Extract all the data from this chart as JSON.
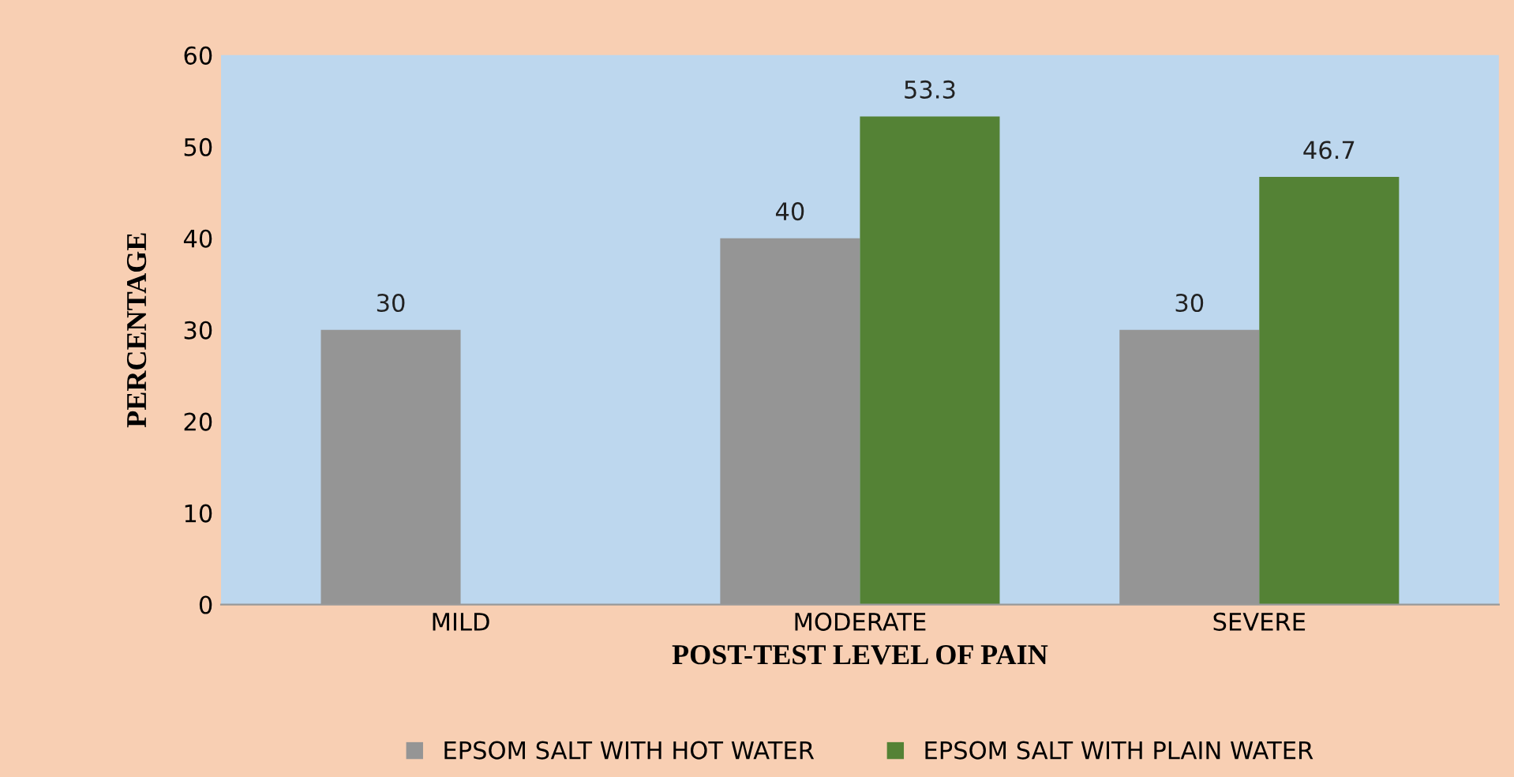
{
  "chart_data": {
    "type": "bar",
    "xlabel": "POST-TEST LEVEL OF PAIN",
    "ylabel": "PERCENTAGE",
    "categories": [
      "MILD",
      "MODERATE",
      "SEVERE"
    ],
    "series": [
      {
        "name": "EPSOM SALT WITH HOT WATER",
        "color": "#959595",
        "values": [
          30,
          40,
          30
        ],
        "value_labels": [
          "30",
          "40",
          "30"
        ]
      },
      {
        "name": "EPSOM SALT WITH PLAIN WATER",
        "color": "#548235",
        "values": [
          null,
          53.3,
          46.7
        ],
        "value_labels": [
          null,
          "53.3",
          "46.7"
        ]
      }
    ],
    "ylim": [
      0,
      60
    ],
    "yticks": [
      0,
      10,
      20,
      30,
      40,
      50,
      60
    ],
    "grid": false,
    "legend": "bottom"
  }
}
